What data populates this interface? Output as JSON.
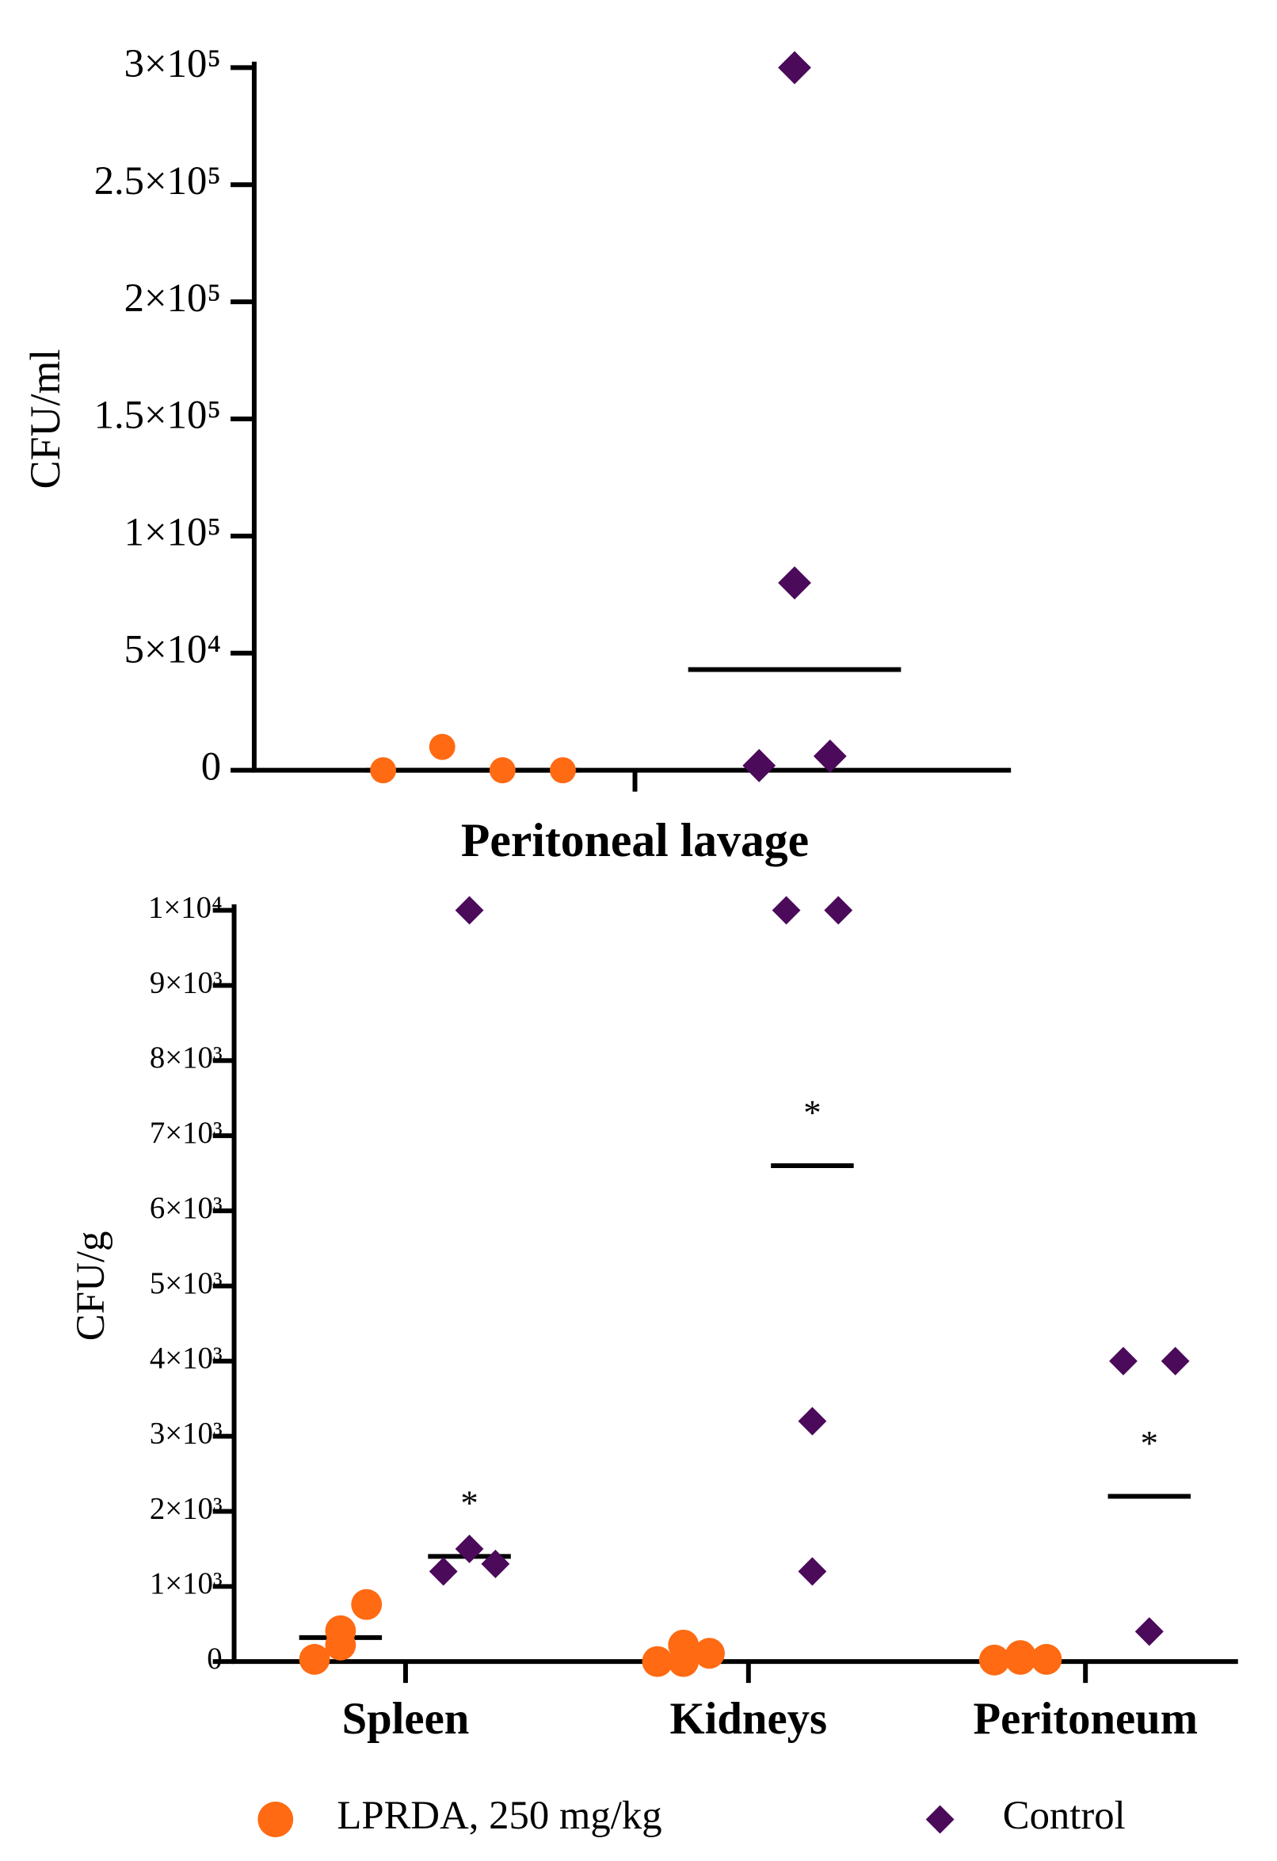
{
  "chart_data": [
    {
      "type": "dot",
      "y_label": "CFU/ml",
      "categories": [
        "Peritoneal lavage"
      ],
      "series": [
        {
          "color": "#ff6a13",
          "marker": "circle",
          "values": [
            [
              0,
              10000,
              0,
              0
            ]
          ],
          "medians": [
            0
          ]
        },
        {
          "color": "#4b0a5a",
          "marker": "diamond",
          "values": [
            [
              2000,
              300000,
              80000,
              6000
            ]
          ],
          "medians": [
            43000
          ]
        }
      ],
      "ylim": [
        0,
        300000
      ],
      "yticks": [
        0,
        {
          "value": 50000,
          "label": "5×10⁴"
        },
        {
          "value": 100000,
          "label": "1×10⁵"
        },
        {
          "value": 150000,
          "label": "1.5×10⁵"
        },
        {
          "value": 200000,
          "label": "2×10⁵"
        },
        {
          "value": 250000,
          "label": "2.5×10⁵"
        },
        {
          "value": 300000,
          "label": "3×10⁵"
        }
      ]
    },
    {
      "type": "dot",
      "y_label": "CFU/g",
      "categories": [
        "Spleen",
        "Kidneys",
        "Peritoneum"
      ],
      "series": [
        {
          "name": "LPRDA, 250 mg/kg",
          "color": "#ff6a13",
          "marker": "circle",
          "values": [
            [
              30,
              410,
              220,
              760
            ],
            [
              0,
              220,
              0,
              110
            ],
            [
              20,
              80,
              30,
              30
            ]
          ],
          "medians": [
            320,
            null,
            null
          ]
        },
        {
          "name": "Control",
          "color": "#4b0a5a",
          "marker": "diamond",
          "values": [
            [
              1200,
              10000,
              1500,
              1300
            ],
            [
              10000,
              3200,
              1200,
              10000
            ],
            [
              4000,
              400,
              400,
              4000
            ]
          ],
          "medians": [
            1400,
            6600,
            2200
          ]
        }
      ],
      "significance": [
        "*",
        "*",
        "*"
      ],
      "ylim": [
        0,
        10000
      ],
      "yticks": [
        0,
        {
          "value": 1000,
          "label": "1×10³"
        },
        {
          "value": 2000,
          "label": "2×10³"
        },
        {
          "value": 3000,
          "label": "3×10³"
        },
        {
          "value": 4000,
          "label": "4×10³"
        },
        {
          "value": 5000,
          "label": "5×10³"
        },
        {
          "value": 6000,
          "label": "6×10³"
        },
        {
          "value": 7000,
          "label": "7×10³"
        },
        {
          "value": 8000,
          "label": "8×10³"
        },
        {
          "value": 9000,
          "label": "9×10³"
        },
        {
          "value": 10000,
          "label": "1×10⁴"
        }
      ]
    }
  ]
}
